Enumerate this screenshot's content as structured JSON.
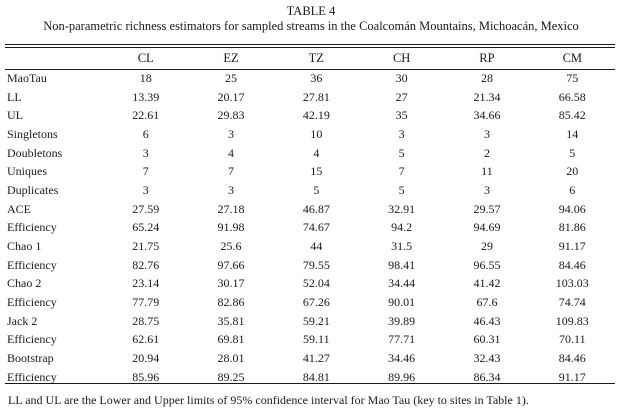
{
  "table_label": "TABLE 4",
  "caption": "Non-parametric richness estimators for sampled streams in the Coalcomán Mountains, Michoacán, Mexico",
  "columns": [
    "",
    "CL",
    "EZ",
    "TZ",
    "CH",
    "RP",
    "CM"
  ],
  "rows": [
    [
      "MaoTau",
      "18",
      "25",
      "36",
      "30",
      "28",
      "75"
    ],
    [
      "LL",
      "13.39",
      "20.17",
      "27.81",
      "27",
      "21.34",
      "66.58"
    ],
    [
      "UL",
      "22.61",
      "29.83",
      "42.19",
      "35",
      "34.66",
      "85.42"
    ],
    [
      "Singletons",
      "6",
      "3",
      "10",
      "3",
      "3",
      "14"
    ],
    [
      "Doubletons",
      "3",
      "4",
      "4",
      "5",
      "2",
      "5"
    ],
    [
      "Uniques",
      "7",
      "7",
      "15",
      "7",
      "11",
      "20"
    ],
    [
      "Duplicates",
      "3",
      "3",
      "5",
      "5",
      "3",
      "6"
    ],
    [
      "ACE",
      "27.59",
      "27.18",
      "46.87",
      "32.91",
      "29.57",
      "94.06"
    ],
    [
      "Efficiency",
      "65.24",
      "91.98",
      "74.67",
      "94.2",
      "94.69",
      "81.86"
    ],
    [
      "Chao 1",
      "21.75",
      "25.6",
      "44",
      "31.5",
      "29",
      "91.17"
    ],
    [
      "Efficiency",
      "82.76",
      "97.66",
      "79.55",
      "98.41",
      "96.55",
      "84.46"
    ],
    [
      "Chao 2",
      "23.14",
      "30.17",
      "52.04",
      "34.44",
      "41.42",
      "103.03"
    ],
    [
      "Efficiency",
      "77.79",
      "82.86",
      "67.26",
      "90.01",
      "67.6",
      "74.74"
    ],
    [
      "Jack 2",
      "28.75",
      "35.81",
      "59.21",
      "39.89",
      "46.43",
      "109.83"
    ],
    [
      "Efficiency",
      "62.61",
      "69.81",
      "59.11",
      "77.71",
      "60.31",
      "70.11"
    ],
    [
      "Bootstrap",
      "20.94",
      "28.01",
      "41.27",
      "34.46",
      "32.43",
      "84.46"
    ],
    [
      "Efficiency",
      "85.96",
      "89.25",
      "84.81",
      "89.96",
      "86.34",
      "91.17"
    ]
  ],
  "footnote": "LL and UL are the Lower and Upper limits of 95% confidence interval for Mao Tau (key to sites in Table 1)."
}
